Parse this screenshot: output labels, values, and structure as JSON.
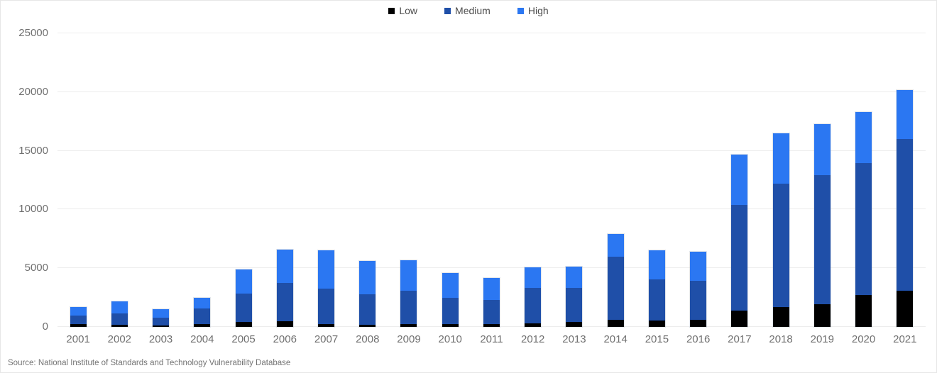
{
  "chart_data": {
    "type": "bar",
    "stacked": true,
    "title": "",
    "xlabel": "",
    "ylabel": "",
    "categories": [
      2001,
      2002,
      2003,
      2004,
      2005,
      2006,
      2007,
      2008,
      2009,
      2010,
      2011,
      2012,
      2013,
      2014,
      2015,
      2016,
      2017,
      2018,
      2019,
      2020,
      2021
    ],
    "series": [
      {
        "name": "Low",
        "color": "#000000",
        "values": [
          225,
          200,
          100,
          250,
          450,
          500,
          250,
          200,
          250,
          250,
          250,
          300,
          400,
          600,
          550,
          600,
          1400,
          1700,
          1950,
          2700,
          3100
        ]
      },
      {
        "name": "Medium",
        "color": "#1f4fa8",
        "values": [
          750,
          975,
          700,
          1350,
          2400,
          3250,
          3000,
          2600,
          2800,
          2250,
          2050,
          3000,
          2950,
          5350,
          3500,
          3300,
          9000,
          10500,
          11000,
          11250,
          12900
        ]
      },
      {
        "name": "High",
        "color": "#2b77f2",
        "values": [
          700,
          975,
          700,
          850,
          2050,
          2850,
          3250,
          2800,
          2650,
          2100,
          1850,
          1800,
          1800,
          1950,
          2450,
          2500,
          4300,
          4300,
          4350,
          4350,
          4150
        ]
      }
    ],
    "totals": [
      1675,
      2150,
      1500,
      2450,
      4900,
      6600,
      6500,
      5600,
      5700,
      4600,
      4150,
      5100,
      5150,
      7900,
      6500,
      6400,
      14700,
      16500,
      17300,
      18300,
      20150
    ],
    "ylim": [
      0,
      25000
    ],
    "yticks": [
      0,
      5000,
      10000,
      15000,
      20000,
      25000
    ],
    "grid": "horizontal",
    "legend_position": "top-center",
    "source": "Source: National Institute of Standards and Technology Vulnerability Database"
  },
  "colors": {
    "grid": "#ededed",
    "axis_text": "#707070",
    "legend_text": "#4d4d4d",
    "source_text": "#737373",
    "card_border": "#e6e6e6",
    "background": "#ffffff"
  }
}
